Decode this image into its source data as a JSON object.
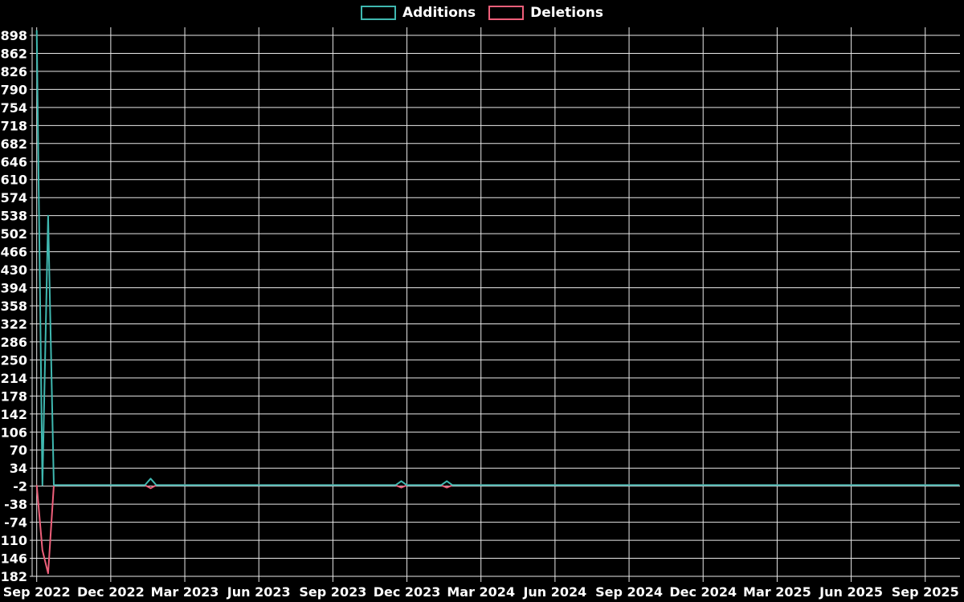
{
  "legend": [
    {
      "label": "Additions",
      "color": "#3fb8b0"
    },
    {
      "label": "Deletions",
      "color": "#ee5f7a"
    }
  ],
  "chart_data": {
    "type": "line",
    "title": "",
    "background_color": "#000000",
    "grid_color": "#e8e8e8",
    "text_color": "#ffffff",
    "legend_position": "top-center",
    "x_unit": "weeks from first tick (Sep 2022)",
    "ylim": [
      -182,
      914
    ],
    "x_axis": {
      "tick_labels": [
        "Sep 2022",
        "Dec 2022",
        "Mar 2023",
        "Jun 2023",
        "Sep 2023",
        "Dec 2023",
        "Mar 2024",
        "Jun 2024",
        "Sep 2024",
        "Dec 2024",
        "Mar 2025",
        "Jun 2025",
        "Sep 2025"
      ],
      "tick_positions": [
        0,
        13,
        26,
        39,
        52,
        65,
        78,
        91,
        104,
        117,
        130,
        143,
        156
      ]
    },
    "y_axis": {
      "tick_values": [
        -182,
        -146,
        -110,
        -74,
        -38,
        -2,
        34,
        70,
        106,
        142,
        178,
        214,
        250,
        286,
        322,
        358,
        394,
        430,
        466,
        502,
        538,
        574,
        610,
        646,
        682,
        718,
        754,
        790,
        826,
        862,
        898
      ]
    },
    "series": [
      {
        "name": "Additions",
        "color": "#3fb8b0",
        "points": [
          [
            0,
            908
          ],
          [
            1,
            0
          ],
          [
            2,
            538
          ],
          [
            3,
            0
          ],
          [
            19,
            0
          ],
          [
            20,
            13
          ],
          [
            21,
            0
          ],
          [
            63,
            0
          ],
          [
            64,
            8
          ],
          [
            65,
            0
          ],
          [
            71,
            0
          ],
          [
            72,
            8
          ],
          [
            73,
            0
          ],
          [
            162,
            0
          ]
        ]
      },
      {
        "name": "Deletions",
        "color": "#ee5f7a",
        "points": [
          [
            0,
            0
          ],
          [
            1,
            -130
          ],
          [
            2,
            -176
          ],
          [
            3,
            0
          ],
          [
            19,
            0
          ],
          [
            20,
            -6
          ],
          [
            21,
            0
          ],
          [
            63,
            0
          ],
          [
            64,
            -5
          ],
          [
            65,
            0
          ],
          [
            71,
            0
          ],
          [
            72,
            -5
          ],
          [
            73,
            0
          ],
          [
            162,
            0
          ]
        ]
      }
    ]
  }
}
